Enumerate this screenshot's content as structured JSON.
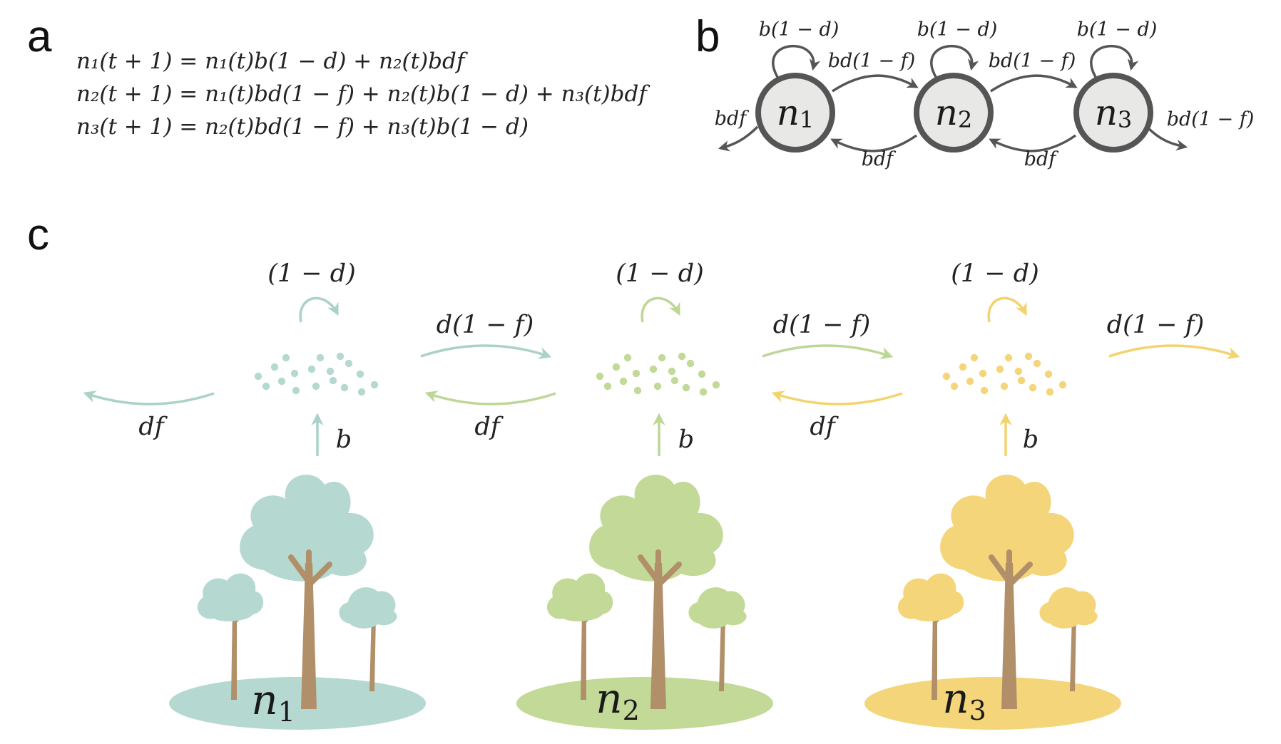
{
  "panels": {
    "a": "a",
    "b": "b",
    "c": "c"
  },
  "equations": [
    "n₁(t + 1) = n₁(t)b(1 − d) + n₂(t)bdf",
    "n₂(t + 1) = n₁(t)bd(1 − f) + n₂(t)b(1 − d) + n₃(t)bdf",
    "n₃(t + 1) = n₂(t)bd(1 − f) + n₃(t)b(1 − d)"
  ],
  "network": {
    "nodes": [
      {
        "name": "n",
        "sub": "1"
      },
      {
        "name": "n",
        "sub": "2"
      },
      {
        "name": "n",
        "sub": "3"
      }
    ],
    "self_loop_label": "b(1 − d)",
    "forward_label": "bd(1 − f)",
    "backward_label": "bdf",
    "left_out_label": "bdf",
    "right_out_label": "bd(1 − f)"
  },
  "populations": {
    "stay_label": "(1 − d)",
    "forward_label": "d(1 − f)",
    "backward_label": "df",
    "birth_label": "b",
    "items": [
      {
        "name": "n",
        "sub": "1",
        "color": "#b5d8d0",
        "trunk": "#b08f69"
      },
      {
        "name": "n",
        "sub": "2",
        "color": "#c2d998",
        "trunk": "#b08f69"
      },
      {
        "name": "n",
        "sub": "3",
        "color": "#f5d57a",
        "trunk": "#b08f69"
      }
    ]
  }
}
